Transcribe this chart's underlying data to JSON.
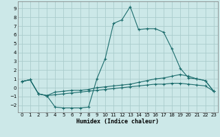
{
  "xlabel": "Humidex (Indice chaleur)",
  "bg_color": "#cce8e8",
  "grid_color": "#aacccc",
  "line_color": "#1a6b6b",
  "xlim": [
    -0.5,
    23.5
  ],
  "ylim": [
    -2.8,
    9.8
  ],
  "xticks": [
    0,
    1,
    2,
    3,
    4,
    5,
    6,
    7,
    8,
    9,
    10,
    11,
    12,
    13,
    14,
    15,
    16,
    17,
    18,
    19,
    20,
    21,
    22,
    23
  ],
  "yticks": [
    -2,
    -1,
    0,
    1,
    2,
    3,
    4,
    5,
    6,
    7,
    8,
    9
  ],
  "series1_x": [
    0,
    1,
    2,
    3,
    4,
    5,
    6,
    7,
    8,
    9,
    10,
    11,
    12,
    13,
    14,
    15,
    16,
    17,
    18,
    19,
    20,
    21,
    22,
    23
  ],
  "series1_y": [
    0.7,
    0.9,
    -0.7,
    -0.9,
    -2.2,
    -2.3,
    -2.3,
    -2.3,
    -2.2,
    1.0,
    3.3,
    7.3,
    7.7,
    9.2,
    6.6,
    6.7,
    6.7,
    6.3,
    4.4,
    2.2,
    1.1,
    1.0,
    0.8,
    -0.4
  ],
  "series2_x": [
    0,
    1,
    2,
    3,
    4,
    5,
    6,
    7,
    8,
    9,
    10,
    11,
    12,
    13,
    14,
    15,
    16,
    17,
    18,
    19,
    20,
    21,
    22,
    23
  ],
  "series2_y": [
    0.7,
    0.9,
    -0.7,
    -0.9,
    -0.5,
    -0.4,
    -0.3,
    -0.3,
    -0.2,
    0.0,
    0.1,
    0.2,
    0.3,
    0.4,
    0.6,
    0.8,
    1.0,
    1.1,
    1.3,
    1.5,
    1.3,
    1.0,
    0.8,
    -0.4
  ],
  "series3_x": [
    0,
    1,
    2,
    3,
    4,
    5,
    6,
    7,
    8,
    9,
    10,
    11,
    12,
    13,
    14,
    15,
    16,
    17,
    18,
    19,
    20,
    21,
    22,
    23
  ],
  "series3_y": [
    0.7,
    0.9,
    -0.7,
    -0.9,
    -0.8,
    -0.7,
    -0.6,
    -0.5,
    -0.4,
    -0.3,
    -0.2,
    -0.1,
    0.0,
    0.1,
    0.2,
    0.3,
    0.4,
    0.4,
    0.5,
    0.5,
    0.4,
    0.3,
    0.2,
    -0.4
  ]
}
